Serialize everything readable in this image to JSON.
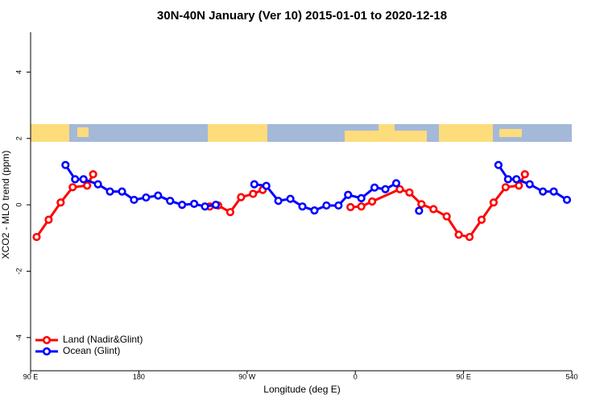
{
  "chart_data": {
    "type": "line",
    "title": "30N-40N January (Ver 10)   2015-01-01 to 2020-12-18",
    "xlabel": "Longitude (deg E)",
    "ylabel": "XCO2 - MLO trend (ppm)",
    "xlim": [
      90,
      540
    ],
    "xticks": [
      {
        "value": 90,
        "label": "90 E"
      },
      180,
      {
        "value": 270,
        "label": "90 W"
      },
      {
        "value": 360,
        "label": "0"
      },
      {
        "value": 450,
        "label": "90 E"
      },
      540
    ],
    "ylim": [
      -5,
      5.2
    ],
    "yticks": [
      -4,
      -2,
      0,
      2,
      4
    ],
    "legend": "bottom-left",
    "series": [
      {
        "name": "Land (Nadir&Glint)",
        "color": "#ff0000",
        "x": [
          95,
          105,
          115,
          125,
          137,
          142,
          null,
          239,
          246,
          256,
          265,
          275,
          283,
          null,
          356,
          365,
          374,
          397,
          405,
          415,
          425,
          436,
          446,
          455,
          465,
          475,
          485,
          496,
          501
        ],
        "values": [
          -0.97,
          -0.45,
          0.07,
          0.53,
          0.58,
          0.92,
          null,
          -0.05,
          -0.02,
          -0.22,
          0.23,
          0.33,
          0.45,
          null,
          -0.07,
          -0.05,
          0.1,
          0.47,
          0.37,
          0.02,
          -0.13,
          -0.35,
          -0.9,
          -0.97,
          -0.45,
          0.07,
          0.53,
          0.58,
          0.92
        ]
      },
      {
        "name": "Ocean (Glint)",
        "color": "#0000ff",
        "x": [
          119,
          127,
          134,
          146,
          156,
          166,
          176,
          186,
          196,
          206,
          216,
          226,
          235,
          244,
          null,
          276,
          286,
          296,
          306,
          316,
          326,
          336,
          346,
          354,
          365,
          376,
          385,
          394,
          null,
          413,
          null,
          479,
          487,
          494,
          505,
          516,
          525,
          536
        ],
        "values": [
          1.2,
          0.77,
          0.77,
          0.62,
          0.4,
          0.4,
          0.15,
          0.22,
          0.28,
          0.12,
          0.0,
          0.03,
          -0.05,
          0.0,
          null,
          0.62,
          0.57,
          0.12,
          0.18,
          -0.05,
          -0.17,
          -0.02,
          -0.02,
          0.3,
          0.2,
          0.52,
          0.47,
          0.65,
          null,
          -0.18,
          null,
          1.2,
          0.77,
          0.77,
          0.62,
          0.4,
          0.4,
          0.15
        ]
      }
    ]
  }
}
